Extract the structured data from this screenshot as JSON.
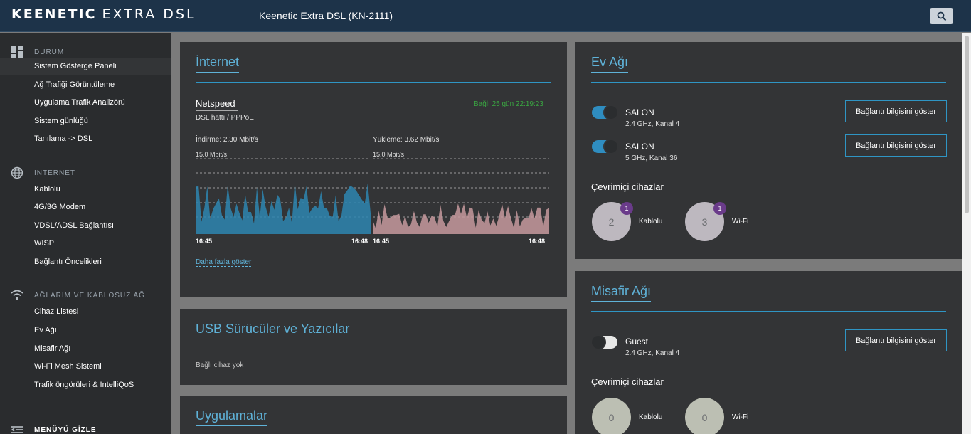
{
  "header": {
    "logo_bold": "KEENETIC",
    "logo_light": "EXTRA DSL",
    "model": "Keenetic Extra DSL (KN-2111)",
    "search_icon": "search-icon"
  },
  "sidebar": {
    "sections": [
      {
        "label": "DURUM",
        "icon": "dashboard-icon",
        "items": [
          "Sistem Gösterge Paneli",
          "Ağ Trafiği Görüntüleme",
          "Uygulama Trafik Analizörü",
          "Sistem günlüğü",
          "Tanılama -> DSL"
        ]
      },
      {
        "label": "İNTERNET",
        "icon": "globe-icon",
        "items": [
          "Kablolu",
          "4G/3G Modem",
          "VDSL/ADSL Bağlantısı",
          "WISP",
          "Bağlantı Öncelikleri"
        ]
      },
      {
        "label": "AĞLARIM VE KABLOSUZ AĞ",
        "icon": "wifi-icon",
        "items": [
          "Cihaz Listesi",
          "Ev Ağı",
          "Misafir Ağı",
          "Wi-Fi Mesh Sistemi",
          "Trafik öngörüleri & IntelliQoS"
        ]
      }
    ],
    "active_item": "Sistem Gösterge Paneli",
    "collapse_label": "MENÜYÜ GİZLE"
  },
  "internet": {
    "title": "İnternet",
    "provider": "Netspeed",
    "line": "DSL hattı / PPPoE",
    "status": "Bağlı 25 gün 22:19:23",
    "status_color": "#3aa842",
    "download_label": "İndirme: 2.30 Mbit/s",
    "upload_label": "Yükleme: 3.62 Mbit/s",
    "scale_down": "15.0 Mbit/s",
    "scale_up": "15.0 Mbit/s",
    "t_start_down": "16:45",
    "t_end_down": "16:48",
    "t_start_up": "16:45",
    "t_end_up": "16:48",
    "more_link": "Daha fazla göster",
    "download_color": "#2e86b0",
    "upload_color": "#c79a9e"
  },
  "usb": {
    "title": "USB Sürücüler ve Yazıcılar",
    "empty": "Bağlı cihaz yok"
  },
  "apps": {
    "title": "Uygulamalar"
  },
  "home": {
    "title": "Ev Ağı",
    "networks": [
      {
        "name": "SALON",
        "detail": "2.4 GHz, Kanal 4",
        "on": true,
        "button": "Bağlantı bilgisini göster"
      },
      {
        "name": "SALON",
        "detail": "5 GHz, Kanal 36",
        "on": true,
        "button": "Bağlantı bilgisini göster"
      }
    ],
    "online_title": "Çevrimiçi cihazlar",
    "wired_count": "2",
    "wired_badge": "1",
    "wired_label": "Kablolu",
    "wifi_count": "3",
    "wifi_badge": "1",
    "wifi_label": "Wi-Fi"
  },
  "guest": {
    "title": "Misafir Ağı",
    "network": {
      "name": "Guest",
      "detail": "2.4 GHz, Kanal 4",
      "on": false,
      "button": "Bağlantı bilgisini göster"
    },
    "online_title": "Çevrimiçi cihazlar",
    "wired_count": "0",
    "wired_label": "Kablolu",
    "wifi_count": "0",
    "wifi_label": "Wi-Fi"
  }
}
